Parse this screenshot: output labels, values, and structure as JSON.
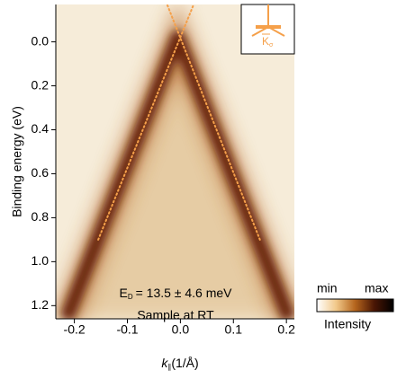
{
  "chart_data": {
    "type": "line",
    "xlabel": {
      "main": "k",
      "sub": "∥",
      "unit": "(1/Å)"
    },
    "ylabel": "Binding energy (eV)",
    "xlim": [
      -0.235,
      0.215
    ],
    "ylim": [
      -0.17,
      1.26
    ],
    "y_inverted": true,
    "xticks": [
      -0.2,
      -0.1,
      {
        "value": 0,
        "label": "0.0"
      },
      0.1,
      0.2
    ],
    "yticks": [
      {
        "value": 0,
        "label": "0.0"
      },
      0.2,
      0.4,
      0.6,
      0.8,
      {
        "value": 1,
        "label": "1.0"
      },
      1.2
    ],
    "series": [
      {
        "color": "#6b2608",
        "style": "band",
        "x": [
          -0.215,
          -0.005,
          0.205
        ],
        "values": [
          1.26,
          -0.02,
          1.26
        ]
      },
      {
        "color": "#f5a04a",
        "style": "dotted",
        "x": [
          -0.155,
          0.025
        ],
        "values": [
          0.9,
          -0.17
        ]
      },
      {
        "color": "#f5a04a",
        "style": "dotted",
        "x": [
          0.15,
          -0.025
        ],
        "values": [
          0.9,
          -0.17
        ]
      }
    ],
    "annotations": [
      {
        "main": "E",
        "sub": "D",
        "rest": "= 13.5 ± 4.6 meV"
      },
      {
        "main": "Sample at RT"
      }
    ],
    "inset": {
      "label": "K",
      "sub": "σ",
      "color": "#f5a04a"
    },
    "colorbar": {
      "min_label": "min",
      "max_label": "max",
      "label": "Intensity",
      "colors": [
        "#ffffff",
        "#f2c98a",
        "#b5651d",
        "#4a1604",
        "#000000"
      ]
    }
  }
}
